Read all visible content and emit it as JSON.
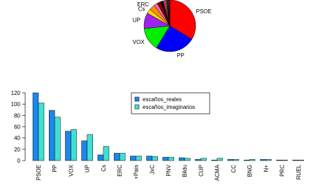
{
  "chart_data": [
    {
      "type": "pie",
      "categories": [
        "PSOE",
        "PP",
        "VOX",
        "UP",
        "Cs",
        "ERC",
        null,
        null,
        null,
        null,
        null,
        null,
        null,
        null,
        null,
        null,
        null
      ],
      "values": [
        120,
        89,
        52,
        35,
        10,
        13,
        8,
        8,
        6,
        5,
        2,
        1,
        2,
        1,
        2,
        1,
        1
      ],
      "colors": [
        "#ff0000",
        "#0000ff",
        "#00ee00",
        "#a020f0",
        "#ffd700",
        "#ff8c00",
        "#ff69b4",
        "#8b0000",
        "#000000",
        "#ff1493",
        "#ffff00",
        "#00bfff",
        "#008b00",
        "#8b4513",
        "#ff00ff",
        "#556b2f",
        "#696969"
      ]
    },
    {
      "type": "bar",
      "categories": [
        "PSOE",
        "PP",
        "VOX",
        "UP",
        "Cs",
        "ERC",
        "+País",
        "JxC",
        "PNV",
        "Bildu",
        "CUP",
        "ACMA",
        "CC",
        "BNG",
        "N+",
        "PRC",
        "RUEL"
      ],
      "series": [
        {
          "name": "escaños_reales",
          "color": "#1c86ee",
          "values": [
            120,
            89,
            52,
            35,
            10,
            13,
            8,
            8,
            6,
            5,
            2,
            1,
            2,
            1,
            2,
            1,
            1
          ]
        },
        {
          "name": "escaños_imaginarios",
          "color": "#40e0d0",
          "values": [
            102,
            77,
            55,
            46,
            25,
            13,
            8,
            7,
            6,
            4,
            4,
            4,
            2,
            2,
            2,
            1,
            1
          ]
        }
      ],
      "ylim": [
        0,
        120
      ],
      "yticks": [
        0,
        20,
        40,
        60,
        80,
        100,
        120
      ],
      "legend": "top-center"
    }
  ]
}
